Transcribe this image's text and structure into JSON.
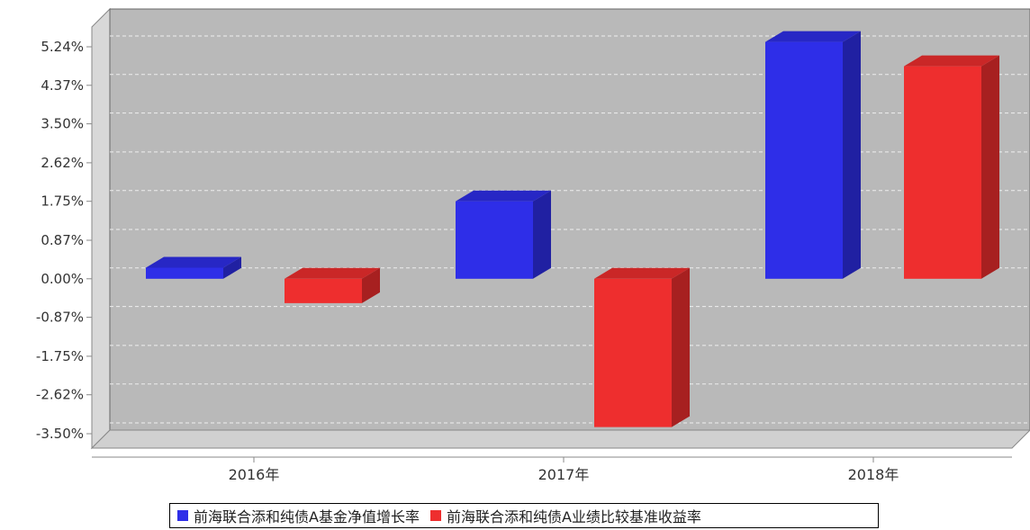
{
  "chart_data": {
    "type": "bar",
    "categories": [
      "2016年",
      "2017年",
      "2018年"
    ],
    "series": [
      {
        "name": "前海联合添和纯债A基金净值增长率",
        "values": [
          0.25,
          1.75,
          5.35
        ],
        "color": "#2e2ee8"
      },
      {
        "name": "前海联合添和纯债A业绩比较基准收益率",
        "values": [
          -0.55,
          -3.35,
          4.8
        ],
        "color": "#ee2e2e"
      }
    ],
    "yticks": [
      "5.24%",
      "4.37%",
      "3.50%",
      "2.62%",
      "1.75%",
      "0.87%",
      "0.00%",
      "-0.87%",
      "-1.75%",
      "-2.62%",
      "-3.50%"
    ],
    "ytick_values": [
      5.24,
      4.37,
      3.5,
      2.62,
      1.75,
      0.87,
      0.0,
      -0.87,
      -1.75,
      -2.62,
      -3.5
    ],
    "ylim": [
      -3.5,
      5.24
    ],
    "grid": true,
    "legend_position": "bottom",
    "title": "",
    "xlabel": "",
    "ylabel": ""
  }
}
